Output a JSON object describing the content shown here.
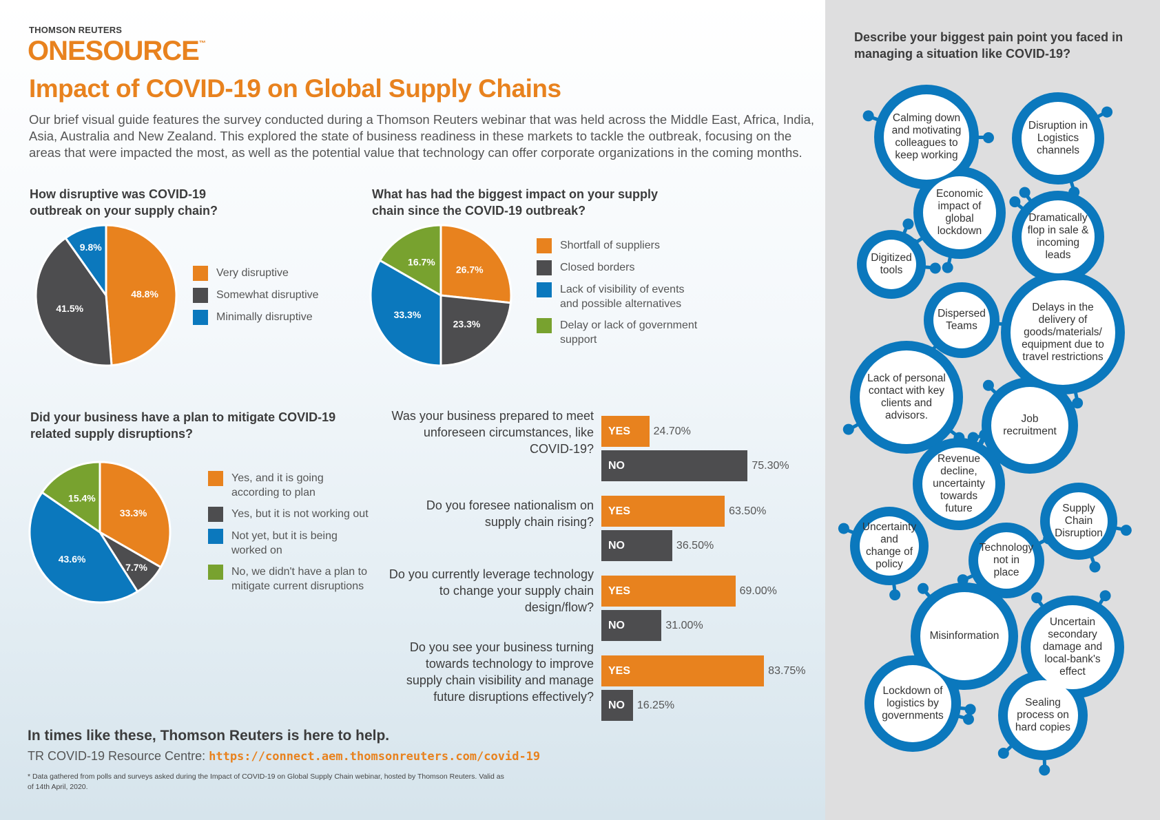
{
  "header": {
    "brand": "THOMSON REUTERS",
    "logo": "ONESOURCE",
    "logo_tm": "™",
    "title": "Impact of COVID-19 on Global Supply Chains",
    "intro": "Our brief visual guide features the survey conducted during a Thomson Reuters webinar that was held across the Middle East, Africa, India, Asia, Australia and New Zealand. This explored the state of business readiness in these markets to tackle the outbreak, focusing on the areas that were impacted the most, as well as the potential value that technology can offer corporate organizations in the coming months."
  },
  "colors": {
    "orange": "#e8821e",
    "grey": "#4d4d4f",
    "blue": "#0b78bd",
    "green": "#78a22f"
  },
  "chart_data": [
    {
      "type": "pie",
      "title": "How disruptive was COVID-19 outbreak on your supply chain?",
      "labels": [
        "Very disruptive",
        "Somewhat disruptive",
        "Minimally disruptive"
      ],
      "values": [
        48.8,
        41.5,
        9.8
      ],
      "colors": [
        "#e8821e",
        "#4d4d4f",
        "#0b78bd"
      ]
    },
    {
      "type": "pie",
      "title": "What has had the biggest impact on your supply chain since the COVID-19 outbreak?",
      "labels": [
        "Shortfall of suppliers",
        "Closed borders",
        "Lack of visibility of events and possible alternatives",
        "Delay or lack of government support"
      ],
      "values": [
        26.7,
        23.3,
        33.3,
        16.7
      ],
      "colors": [
        "#e8821e",
        "#4d4d4f",
        "#0b78bd",
        "#78a22f"
      ]
    },
    {
      "type": "pie",
      "title": "Did your business have a plan to mitigate COVID-19 related supply disruptions?",
      "labels": [
        "Yes, and it is going according to plan",
        "Yes, but it is not working out",
        "Not yet, but it is being worked on",
        "No, we didn't have a plan to mitigate current disruptions"
      ],
      "values": [
        33.3,
        7.7,
        43.6,
        15.4
      ],
      "colors": [
        "#e8821e",
        "#4d4d4f",
        "#0b78bd",
        "#78a22f"
      ]
    },
    {
      "type": "bar",
      "orientation": "horizontal",
      "series_labels": [
        "YES",
        "NO"
      ],
      "questions": [
        {
          "q": "Was your business prepared to meet unforeseen circumstances, like COVID-19?",
          "yes": 24.7,
          "no": 75.3,
          "yes_label": "24.70%",
          "no_label": "75.30%"
        },
        {
          "q": "Do you foresee nationalism on supply chain rising?",
          "yes": 63.5,
          "no": 36.5,
          "yes_label": "63.50%",
          "no_label": "36.50%"
        },
        {
          "q": "Do you currently leverage technology to change your supply chain design/flow?",
          "yes": 69.0,
          "no": 31.0,
          "yes_label": "69.00%",
          "no_label": "31.00%"
        },
        {
          "q": "Do you see your business turning towards technology to improve supply chain visibility and manage future disruptions effectively?",
          "yes": 83.75,
          "no": 16.25,
          "yes_label": "83.75%",
          "no_label": "16.25%"
        }
      ]
    }
  ],
  "side": {
    "question": "Describe your biggest pain point you faced in managing a situation like COVID-19?",
    "answers": [
      "Calming down and motivating colleagues to keep working",
      "Disruption in Logistics channels",
      "Economic impact of global lockdown",
      "Dramatically flop in sale & incoming leads",
      "Digitized tools",
      "Dispersed Teams",
      "Delays in the delivery of goods/materials/ equipment due to travel restrictions",
      "Lack of personal contact with key clients and advisors.",
      "Job recruitment",
      "Revenue decline, uncertainty towards future",
      "Supply Chain Disruption",
      "Uncertainty and change of policy",
      "Technology not in place",
      "Misinformation",
      "Uncertain secondary damage and local-bank's effect",
      "Lockdown of logistics by governments",
      "Sealing process on hard copies"
    ]
  },
  "footer": {
    "help": "In times like these, Thomson Reuters is here to help.",
    "resource_label": "TR COVID-19 Resource Centre:",
    "resource_link": "https://connect.aem.thomsonreuters.com/covid-19",
    "note": "* Data gathered from polls and surveys asked during the Impact of COVID-19 on Global Supply Chain webinar, hosted by Thomson Reuters. Valid as of 14th April, 2020."
  }
}
